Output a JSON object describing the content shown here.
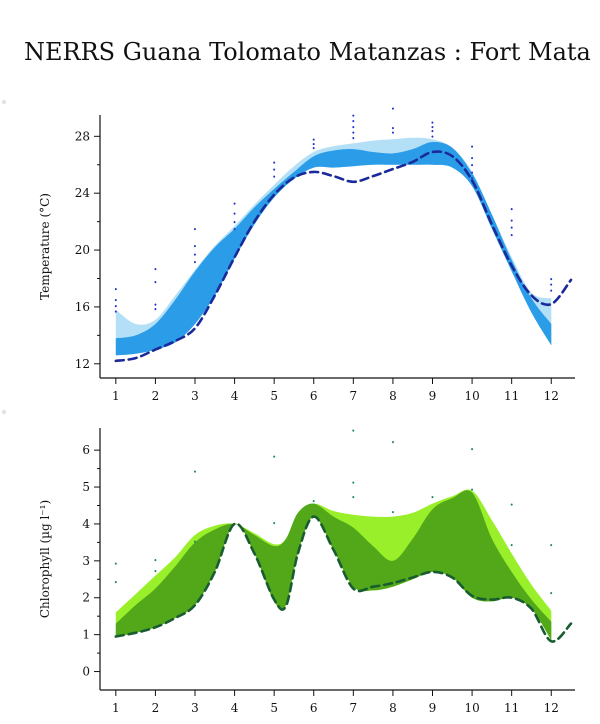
{
  "page": {
    "title": "NERRS Guana Tolomato Matanzas : Fort Mata"
  },
  "colors": {
    "temp_light": "#b3e0f7",
    "temp_dark": "#2b9de8",
    "temp_line": "#1a2a9a",
    "temp_points": "#2233cc",
    "chl_light": "#99f02a",
    "chl_dark": "#52a818",
    "chl_line": "#1a5c32",
    "chl_points": "#1a8a5a"
  },
  "chart_data": [
    {
      "type": "area",
      "ylabel": "Temperature (°C)",
      "x_ticks": [
        1,
        2,
        3,
        4,
        5,
        6,
        7,
        8,
        9,
        10,
        11,
        12
      ],
      "y_ticks": [
        12,
        16,
        20,
        24,
        28
      ],
      "xlim": [
        0.6,
        12.6
      ],
      "ylim": [
        11.0,
        29.5
      ],
      "x": [
        1,
        1.5,
        2,
        2.5,
        3,
        3.5,
        4,
        4.5,
        5,
        5.5,
        6,
        6.5,
        7,
        7.5,
        8,
        8.5,
        9,
        9.5,
        10,
        10.5,
        11,
        11.5,
        12
      ],
      "series": [
        {
          "role": "band_light_upper",
          "values": [
            15.8,
            14.8,
            15.1,
            16.8,
            18.6,
            20.3,
            21.7,
            23.2,
            24.6,
            25.9,
            26.9,
            27.3,
            27.5,
            27.7,
            27.8,
            27.9,
            27.8,
            27.2,
            25.5,
            22.5,
            19.5,
            17.0,
            16.6
          ]
        },
        {
          "role": "band_dark_upper",
          "values": [
            13.8,
            14.0,
            14.8,
            16.5,
            18.5,
            20.2,
            21.5,
            23.0,
            24.3,
            25.5,
            26.6,
            27.0,
            27.1,
            26.9,
            26.8,
            27.1,
            27.6,
            27.2,
            25.4,
            22.5,
            19.3,
            16.6,
            14.8
          ]
        },
        {
          "role": "band_dark_lower",
          "values": [
            12.6,
            12.7,
            13.0,
            13.5,
            14.8,
            16.8,
            19.4,
            21.8,
            23.7,
            25.0,
            25.8,
            25.8,
            25.9,
            26.0,
            26.0,
            26.0,
            26.0,
            25.8,
            24.5,
            21.5,
            18.5,
            15.6,
            13.3
          ]
        },
        {
          "role": "dashed_line",
          "x_ext": 12.5,
          "values": [
            12.2,
            12.4,
            13.0,
            13.6,
            14.5,
            16.8,
            19.5,
            22.0,
            23.9,
            25.1,
            25.5,
            25.2,
            24.8,
            25.2,
            25.7,
            26.2,
            26.9,
            26.6,
            24.9,
            21.8,
            18.9,
            16.8,
            16.2
          ],
          "value_ext": 17.9
        },
        {
          "role": "points",
          "values": [
            [
              1,
              17.2
            ],
            [
              1,
              16.4
            ],
            [
              1,
              16.0
            ],
            [
              1,
              15.6
            ],
            [
              2,
              18.6
            ],
            [
              2,
              17.7
            ],
            [
              2,
              16.1
            ],
            [
              2,
              15.8
            ],
            [
              3,
              21.4
            ],
            [
              3,
              20.2
            ],
            [
              3,
              19.6
            ],
            [
              3,
              19.1
            ],
            [
              4,
              23.2
            ],
            [
              4,
              22.5
            ],
            [
              4,
              21.9
            ],
            [
              4,
              21.4
            ],
            [
              5,
              26.1
            ],
            [
              5,
              25.6
            ],
            [
              5,
              25.1
            ],
            [
              6,
              27.7
            ],
            [
              6,
              27.4
            ],
            [
              6,
              27.1
            ],
            [
              7,
              29.4
            ],
            [
              7,
              29.0
            ],
            [
              7,
              28.6
            ],
            [
              7,
              28.2
            ],
            [
              7,
              27.8
            ],
            [
              8,
              29.9
            ],
            [
              8,
              28.5
            ],
            [
              8,
              28.2
            ],
            [
              9,
              28.9
            ],
            [
              9,
              28.6
            ],
            [
              9,
              28.3
            ],
            [
              9,
              27.9
            ],
            [
              10,
              27.2
            ],
            [
              10,
              26.4
            ],
            [
              10,
              25.9
            ],
            [
              10,
              25.4
            ],
            [
              10,
              25.0
            ],
            [
              11,
              22.8
            ],
            [
              11,
              22.0
            ],
            [
              11,
              21.5
            ],
            [
              11,
              21.0
            ],
            [
              12,
              17.9
            ],
            [
              12,
              17.5
            ],
            [
              12,
              17.1
            ]
          ]
        }
      ]
    },
    {
      "type": "area",
      "ylabel": "Chlorophyll (µg l⁻¹)",
      "x_ticks": [
        1,
        2,
        3,
        4,
        5,
        6,
        7,
        8,
        9,
        10,
        11,
        12
      ],
      "y_ticks": [
        0,
        1,
        2,
        3,
        4,
        5,
        6
      ],
      "xlim": [
        0.6,
        12.6
      ],
      "ylim": [
        -0.5,
        6.6
      ],
      "x": [
        1,
        1.5,
        2,
        2.5,
        3,
        3.5,
        4,
        4.5,
        5,
        5.3,
        5.6,
        6,
        6.5,
        7,
        7.5,
        8,
        8.5,
        9,
        9.5,
        10,
        10.5,
        11,
        11.5,
        12
      ],
      "series": [
        {
          "role": "band_light_upper",
          "values": [
            1.6,
            2.1,
            2.6,
            3.1,
            3.7,
            3.95,
            4.0,
            3.75,
            3.45,
            3.6,
            4.3,
            4.55,
            4.35,
            4.25,
            4.2,
            4.2,
            4.3,
            4.55,
            4.75,
            4.9,
            4.1,
            3.2,
            2.35,
            1.65
          ]
        },
        {
          "role": "band_dark_upper",
          "values": [
            1.3,
            1.8,
            2.25,
            2.85,
            3.5,
            3.85,
            4.0,
            3.7,
            3.4,
            3.6,
            4.3,
            4.55,
            4.2,
            3.9,
            3.4,
            3.0,
            3.6,
            4.4,
            4.7,
            4.85,
            3.6,
            2.7,
            1.95,
            1.35
          ]
        },
        {
          "role": "band_dark_lower",
          "values": [
            0.95,
            1.05,
            1.2,
            1.45,
            1.8,
            2.7,
            4.0,
            3.2,
            1.9,
            1.8,
            3.2,
            4.2,
            3.3,
            2.3,
            2.2,
            2.3,
            2.5,
            2.7,
            2.55,
            2.0,
            1.9,
            2.0,
            1.7,
            0.85
          ]
        },
        {
          "role": "dashed_line",
          "x_ext": 12.5,
          "values": [
            0.95,
            1.05,
            1.2,
            1.45,
            1.8,
            2.7,
            4.0,
            3.2,
            1.95,
            1.78,
            3.2,
            4.2,
            3.3,
            2.25,
            2.3,
            2.4,
            2.55,
            2.7,
            2.55,
            2.05,
            1.95,
            2.0,
            1.7,
            0.82
          ],
          "value_ext": 1.3
        },
        {
          "role": "points",
          "values": [
            [
              1,
              2.9
            ],
            [
              1,
              2.4
            ],
            [
              2,
              3.0
            ],
            [
              2,
              2.7
            ],
            [
              3,
              5.4
            ],
            [
              3,
              3.5
            ],
            [
              5,
              5.8
            ],
            [
              5,
              4.0
            ],
            [
              6,
              4.6
            ],
            [
              7,
              6.5
            ],
            [
              7,
              5.1
            ],
            [
              7,
              4.7
            ],
            [
              8,
              6.2
            ],
            [
              8,
              4.3
            ],
            [
              9,
              4.7
            ],
            [
              10,
              6.0
            ],
            [
              10,
              4.9
            ],
            [
              11,
              4.5
            ],
            [
              11,
              3.4
            ],
            [
              12,
              3.4
            ],
            [
              12,
              2.1
            ]
          ]
        }
      ]
    }
  ]
}
